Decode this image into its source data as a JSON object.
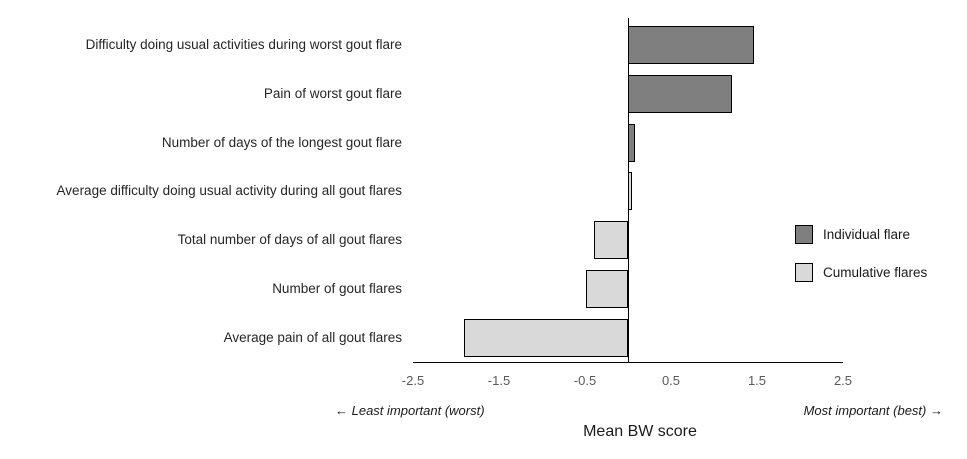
{
  "chart_data": {
    "type": "bar",
    "orientation": "horizontal",
    "xlabel": "Mean BW score",
    "xlim": [
      -2.5,
      2.5
    ],
    "x_ticks": [
      -2.5,
      -1.5,
      -0.5,
      0.5,
      1.5,
      2.5
    ],
    "grid": false,
    "legend_position": "right-middle",
    "bars": [
      {
        "label": "Difficulty doing usual activities during worst gout flare",
        "value": 1.46,
        "series": "Individual flare"
      },
      {
        "label": "Pain of worst gout flare",
        "value": 1.21,
        "series": "Individual flare"
      },
      {
        "label": "Number of days of the longest gout flare",
        "value": 0.08,
        "series": "Individual flare"
      },
      {
        "label": "Average difficulty doing usual activity during all gout flares",
        "value": 0.05,
        "series": "Cumulative flares"
      },
      {
        "label": "Total number of days of all gout flares",
        "value": -0.4,
        "series": "Cumulative flares"
      },
      {
        "label": "Number of gout flares",
        "value": -0.49,
        "series": "Cumulative flares"
      },
      {
        "label": "Average pain of all gout flares",
        "value": -1.91,
        "series": "Cumulative flares"
      }
    ],
    "legend": [
      {
        "label": "Individual flare",
        "color": "#7f7f7f"
      },
      {
        "label": "Cumulative flares",
        "color": "#d9d9d9"
      }
    ],
    "annotations": {
      "left_arrow": "← Least important (worst)",
      "right_arrow": "Most important (best) →"
    },
    "colors": {
      "bar_outline": "#000000",
      "axis_line": "#000000",
      "tick_text": "#595959",
      "category_text": "#262626"
    }
  }
}
